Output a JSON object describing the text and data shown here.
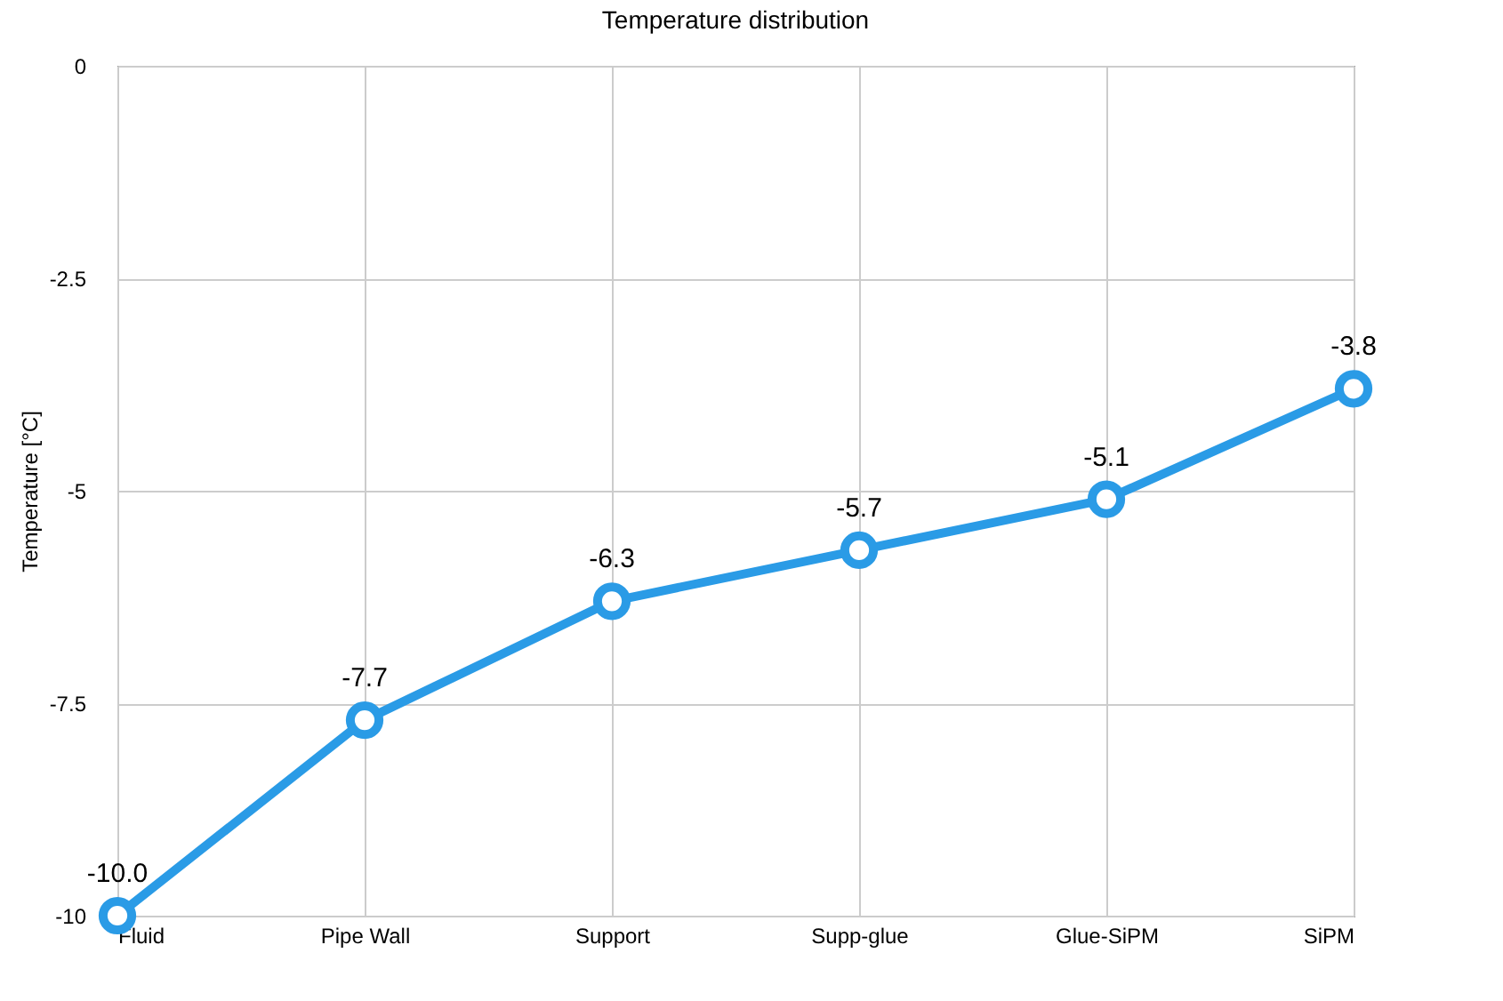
{
  "chart_data": {
    "type": "line",
    "title": "Temperature distribution",
    "ylabel": "Temperature [°C]",
    "categories": [
      "Fluid",
      "Pipe Wall",
      "Support",
      "Supp-glue",
      "Glue-SiPM",
      "SiPM"
    ],
    "series": [
      {
        "color": "#2a9be6",
        "values": [
          -10.0,
          -7.7,
          -6.3,
          -5.7,
          -5.1,
          -3.8
        ],
        "value_labels": [
          "-10.0",
          "-7.7",
          "-6.3",
          "-5.7",
          "-5.1",
          "-3.8"
        ]
      }
    ],
    "ylim": [
      -10,
      0
    ],
    "yticks": [
      0,
      -2.5,
      -5,
      -7.5,
      -10
    ],
    "grid": true,
    "marker": "circle",
    "line_style": "solid"
  }
}
